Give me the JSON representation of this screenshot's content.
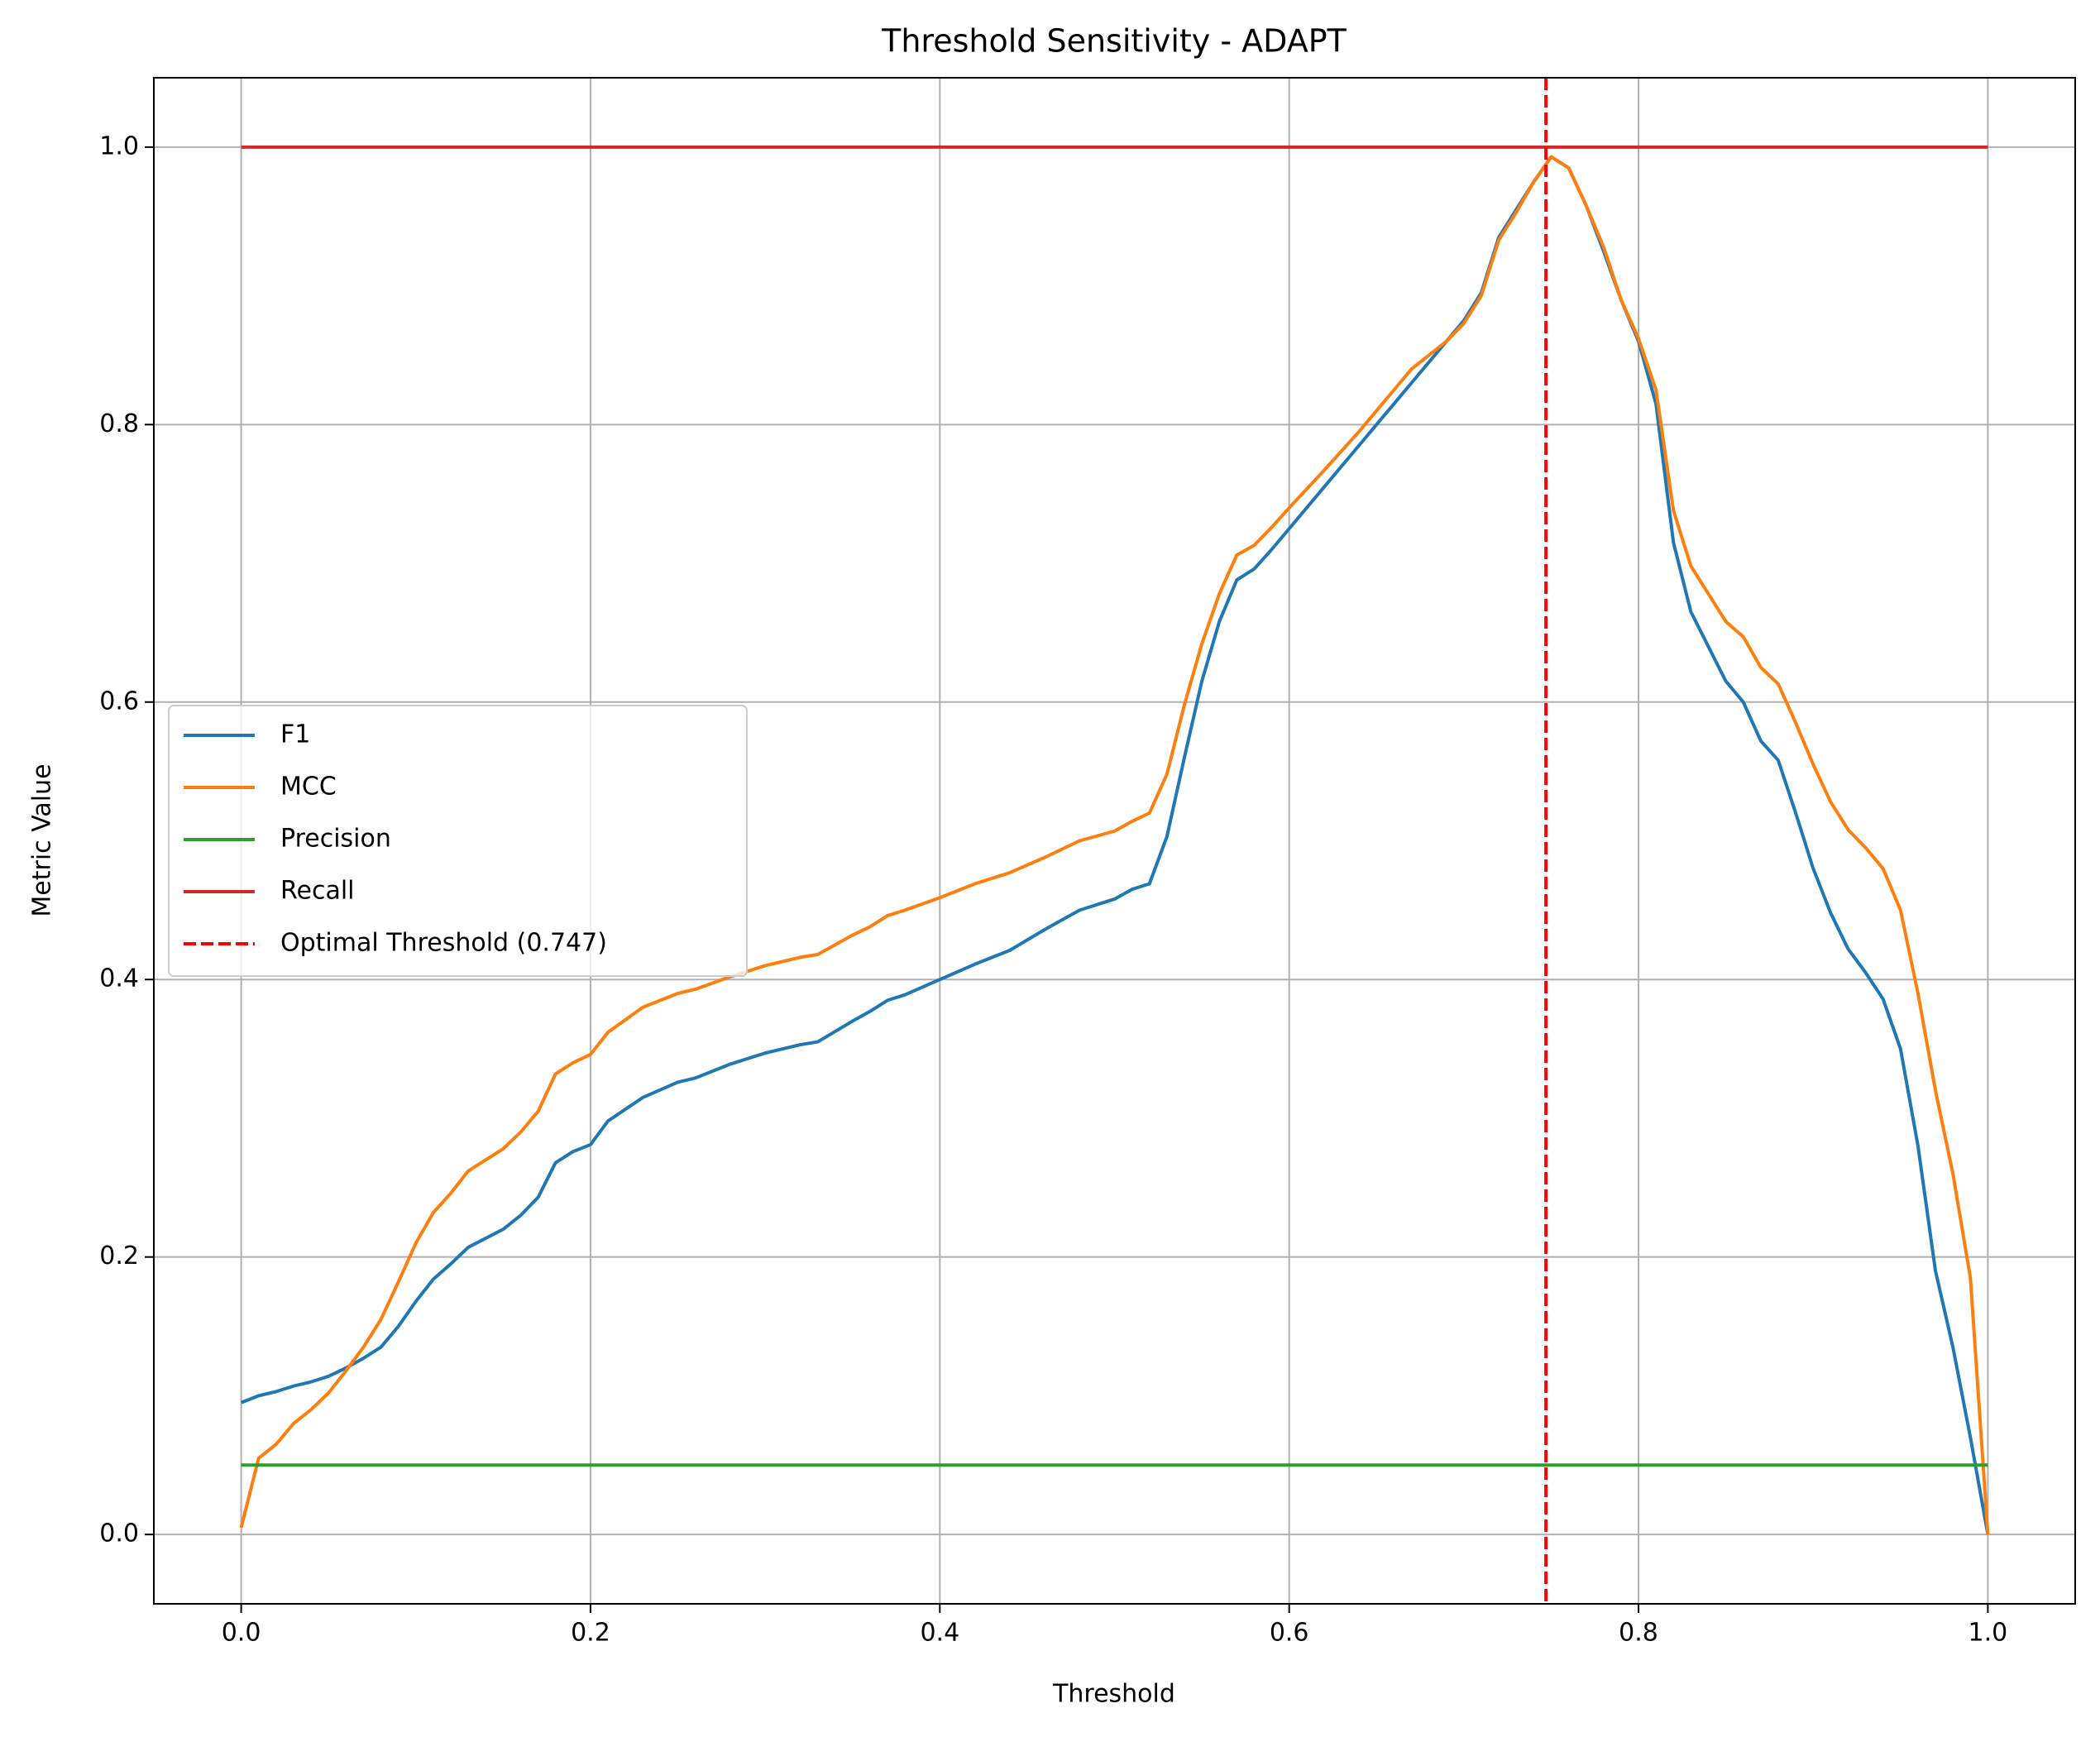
{
  "chart_data": {
    "type": "line",
    "title": "Threshold Sensitivity - ADAPT",
    "xlabel": "Threshold",
    "ylabel": "Metric Value",
    "x": [
      0,
      0.01,
      0.02,
      0.03,
      0.04,
      0.05,
      0.06,
      0.07,
      0.08,
      0.09,
      0.1,
      0.11,
      0.12,
      0.13,
      0.15,
      0.16,
      0.17,
      0.18,
      0.19,
      0.2,
      0.21,
      0.23,
      0.25,
      0.26,
      0.28,
      0.3,
      0.32,
      0.33,
      0.35,
      0.36,
      0.37,
      0.38,
      0.4,
      0.42,
      0.44,
      0.46,
      0.48,
      0.5,
      0.51,
      0.52,
      0.53,
      0.54,
      0.55,
      0.56,
      0.57,
      0.58,
      0.59,
      0.6,
      0.62,
      0.64,
      0.66,
      0.67,
      0.69,
      0.7,
      0.71,
      0.72,
      0.73,
      0.74,
      0.75,
      0.76,
      0.77,
      0.78,
      0.79,
      0.8,
      0.81,
      0.82,
      0.83,
      0.84,
      0.85,
      0.86,
      0.87,
      0.88,
      0.89,
      0.9,
      0.91,
      0.92,
      0.93,
      0.94,
      0.95,
      0.96,
      0.97,
      0.98,
      0.99,
      1.0
    ],
    "series": [
      {
        "name": "F1",
        "color": "#1f77b4",
        "values": [
          0.095,
          0.1,
          0.103,
          0.107,
          0.11,
          0.114,
          0.12,
          0.127,
          0.135,
          0.15,
          0.168,
          0.184,
          0.195,
          0.207,
          0.22,
          0.23,
          0.243,
          0.268,
          0.276,
          0.281,
          0.298,
          0.315,
          0.326,
          0.329,
          0.339,
          0.347,
          0.353,
          0.355,
          0.37,
          0.377,
          0.385,
          0.389,
          0.4,
          0.411,
          0.421,
          0.436,
          0.45,
          0.458,
          0.465,
          0.469,
          0.503,
          0.56,
          0.615,
          0.658,
          0.688,
          0.696,
          0.71,
          0.725,
          0.755,
          0.785,
          0.815,
          0.83,
          0.86,
          0.875,
          0.895,
          0.935,
          0.955,
          0.975,
          0.993,
          0.985,
          0.958,
          0.925,
          0.89,
          0.86,
          0.815,
          0.715,
          0.665,
          0.64,
          0.615,
          0.6,
          0.572,
          0.558,
          0.52,
          0.48,
          0.448,
          0.422,
          0.405,
          0.386,
          0.35,
          0.28,
          0.19,
          0.135,
          0.07,
          0.0
        ]
      },
      {
        "name": "MCC",
        "color": "#ff7f0e",
        "values": [
          0.005,
          0.055,
          0.065,
          0.08,
          0.09,
          0.102,
          0.118,
          0.135,
          0.155,
          0.182,
          0.21,
          0.232,
          0.246,
          0.262,
          0.278,
          0.29,
          0.305,
          0.332,
          0.34,
          0.346,
          0.362,
          0.38,
          0.39,
          0.393,
          0.402,
          0.41,
          0.416,
          0.418,
          0.432,
          0.438,
          0.446,
          0.45,
          0.459,
          0.469,
          0.477,
          0.488,
          0.5,
          0.507,
          0.514,
          0.52,
          0.548,
          0.598,
          0.642,
          0.678,
          0.706,
          0.713,
          0.726,
          0.74,
          0.767,
          0.795,
          0.825,
          0.84,
          0.86,
          0.873,
          0.893,
          0.933,
          0.953,
          0.975,
          0.993,
          0.985,
          0.958,
          0.928,
          0.89,
          0.862,
          0.825,
          0.738,
          0.698,
          0.678,
          0.658,
          0.647,
          0.625,
          0.613,
          0.585,
          0.555,
          0.528,
          0.508,
          0.495,
          0.48,
          0.45,
          0.39,
          0.32,
          0.26,
          0.185,
          0.0
        ]
      },
      {
        "name": "Precision",
        "color": "#2ca02c",
        "x": [
          0,
          1
        ],
        "values": [
          0.05,
          0.05
        ]
      },
      {
        "name": "Recall",
        "color": "#d62728",
        "x": [
          0,
          1
        ],
        "values": [
          1.0,
          1.0
        ]
      }
    ],
    "vlines": [
      {
        "name": "Optimal Threshold (0.747)",
        "value": 0.747,
        "color": "#ff0000",
        "dashed": true
      }
    ],
    "xlim": [
      -0.05,
      1.05
    ],
    "ylim": [
      -0.05,
      1.05
    ],
    "xticks": [
      {
        "value": 0,
        "label": "0.0"
      },
      {
        "value": 0.2,
        "label": "0.2"
      },
      {
        "value": 0.4,
        "label": "0.4"
      },
      {
        "value": 0.6,
        "label": "0.6"
      },
      {
        "value": 0.8,
        "label": "0.8"
      },
      {
        "value": 1,
        "label": "1.0"
      }
    ],
    "yticks": [
      {
        "value": 0,
        "label": "0.0"
      },
      {
        "value": 0.2,
        "label": "0.2"
      },
      {
        "value": 0.4,
        "label": "0.4"
      },
      {
        "value": 0.6,
        "label": "0.6"
      },
      {
        "value": 0.8,
        "label": "0.8"
      },
      {
        "value": 1,
        "label": "1.0"
      }
    ],
    "grid": true,
    "legend": "center left"
  }
}
